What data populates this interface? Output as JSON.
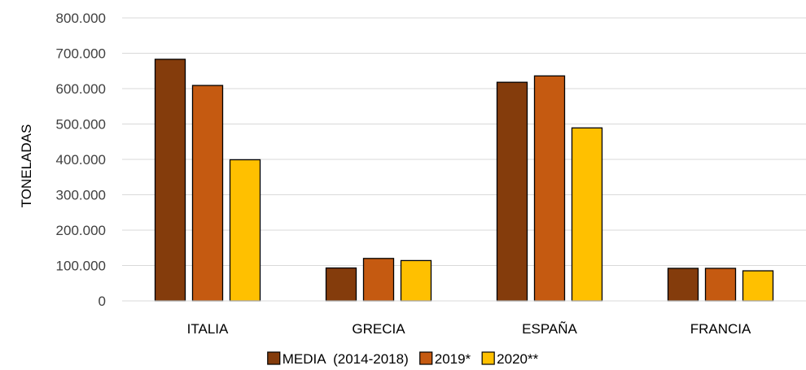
{
  "chart_data": {
    "type": "bar",
    "categories": [
      "ITALIA",
      "GRECIA",
      "ESPAÑA",
      "FRANCIA"
    ],
    "series": [
      {
        "name": "MEDIA  (2014-2018)",
        "values": [
          683000,
          93000,
          618000,
          92000
        ],
        "color": "#843C0C"
      },
      {
        "name": "2019*",
        "values": [
          609000,
          120000,
          636000,
          92000
        ],
        "color": "#C55A11"
      },
      {
        "name": "2020**",
        "values": [
          399000,
          114000,
          489000,
          85000
        ],
        "color": "#FFC000"
      }
    ],
    "ylabel": "TONELADAS",
    "xlabel": "",
    "ylim": [
      0,
      800000
    ],
    "yticks": [
      0,
      100000,
      200000,
      300000,
      400000,
      500000,
      600000,
      700000,
      800000
    ],
    "ytick_labels": [
      "0",
      "100.000",
      "200.000",
      "300.000",
      "400.000",
      "500.000",
      "600.000",
      "700.000",
      "800.000"
    ],
    "grid": true,
    "legend": "bottom-center",
    "gridline_color": "#D9D9D9",
    "bar_outline_color": "#000000"
  }
}
